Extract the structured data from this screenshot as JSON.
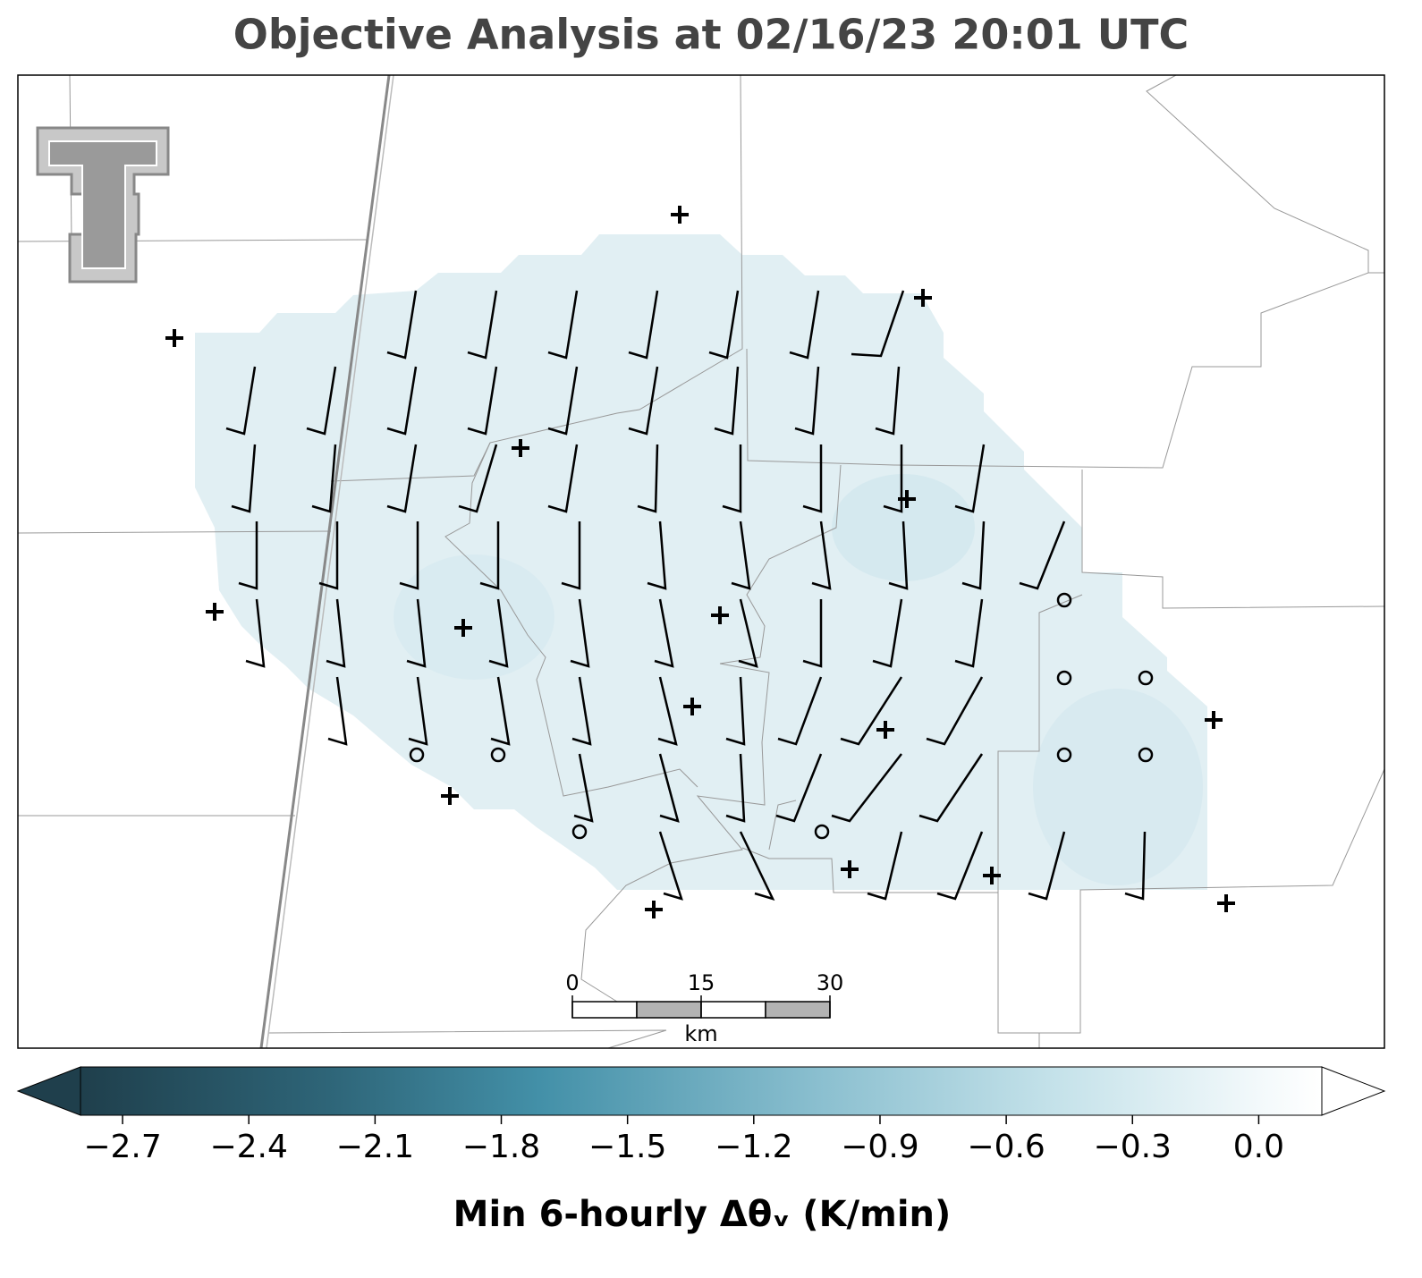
{
  "title": "Objective Analysis at 02/16/23 20:01 UTC",
  "colorbar": {
    "label": "Min 6-hourly Δθᵥ (K/min)",
    "lim": [
      -2.8,
      0.15
    ],
    "ticks": [
      {
        "value": -2.7,
        "label": "−2.7"
      },
      {
        "value": -2.4,
        "label": "−2.4"
      },
      {
        "value": -2.1,
        "label": "−2.1"
      },
      {
        "value": -1.8,
        "label": "−1.8"
      },
      {
        "value": -1.5,
        "label": "−1.5"
      },
      {
        "value": -1.2,
        "label": "−1.2"
      },
      {
        "value": -0.9,
        "label": "−0.9"
      },
      {
        "value": -0.6,
        "label": "−0.6"
      },
      {
        "value": -0.3,
        "label": "−0.3"
      },
      {
        "value": 0,
        "label": "0.0"
      }
    ]
  },
  "scale_bar": {
    "lim": [
      0,
      30
    ],
    "ticks": [
      0,
      15,
      30
    ],
    "unit": "km"
  }
}
